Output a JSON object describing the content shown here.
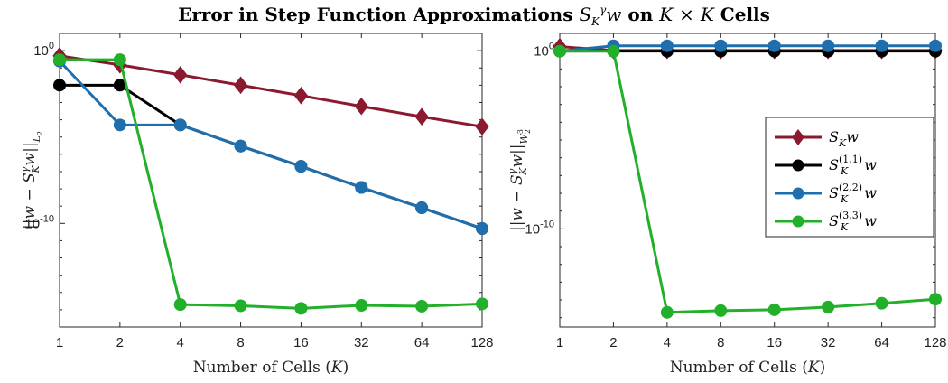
{
  "title": "Error in Step Function Approximations S_K^γ w on K × K Cells",
  "chart_data": [
    {
      "type": "line",
      "y_scale": "log",
      "xlabel": "Number of Cells (K)",
      "ylabel": "||w − S_K^γ w||_{L_2}",
      "categories": [
        "1",
        "2",
        "4",
        "8",
        "16",
        "32",
        "64",
        "128"
      ],
      "ylim": [
        1e-16,
        10
      ],
      "y_ticks": [
        "10^0",
        "10^-10"
      ],
      "grid": false,
      "series": [
        {
          "name": "S_K w",
          "color": "#8B1A2E",
          "marker": "diamond",
          "values": [
            0.5,
            0.15,
            0.04,
            0.01,
            0.0025,
            0.0006,
            0.00015,
            4e-05
          ]
        },
        {
          "name": "S_K^(1,1) w",
          "color": "#000000",
          "marker": "circle",
          "values": [
            0.01,
            0.01,
            5e-05,
            3e-06,
            2e-07,
            1.2e-08,
            8e-10,
            5e-11
          ]
        },
        {
          "name": "S_K^(2,2) w",
          "color": "#1F6FAF",
          "marker": "circle",
          "values": [
            0.25,
            5e-05,
            5e-05,
            3e-06,
            2e-07,
            1.2e-08,
            8e-10,
            5e-11
          ]
        },
        {
          "name": "S_K^(3,3) w",
          "color": "#22B02A",
          "marker": "circle",
          "values": [
            0.3,
            0.3,
            2e-15,
            1.7e-15,
            1.2e-15,
            1.8e-15,
            1.6e-15,
            2.2e-15
          ]
        }
      ]
    },
    {
      "type": "line",
      "y_scale": "log",
      "xlabel": "Number of Cells (K)",
      "ylabel": "||w − S_K^γ w||_{W_2^3}",
      "categories": [
        "1",
        "2",
        "4",
        "8",
        "16",
        "32",
        "64",
        "128"
      ],
      "ylim": [
        3e-16,
        10
      ],
      "y_ticks": [
        "10^0",
        "10^-10"
      ],
      "grid": false,
      "legend": "right",
      "series": [
        {
          "name": "S_K w",
          "color": "#8B1A2E",
          "marker": "diamond",
          "values": [
            1.8,
            1.1,
            1.1,
            1.1,
            1.1,
            1.1,
            1.1,
            1.1
          ]
        },
        {
          "name": "S_K^(1,1) w",
          "color": "#000000",
          "marker": "circle",
          "values": [
            1.0,
            1.0,
            1.0,
            1.0,
            1.0,
            1.0,
            1.0,
            1.0
          ]
        },
        {
          "name": "S_K^(2,2) w",
          "color": "#1F6FAF",
          "marker": "circle",
          "values": [
            1.0,
            2.0,
            2.0,
            2.0,
            2.0,
            2.0,
            2.0,
            2.0
          ]
        },
        {
          "name": "S_K^(3,3) w",
          "color": "#22B02A",
          "marker": "circle",
          "values": [
            1.0,
            1.0,
            2e-15,
            2.5e-15,
            2.8e-15,
            4e-15,
            6.5e-15,
            1.1e-14
          ]
        }
      ]
    }
  ]
}
